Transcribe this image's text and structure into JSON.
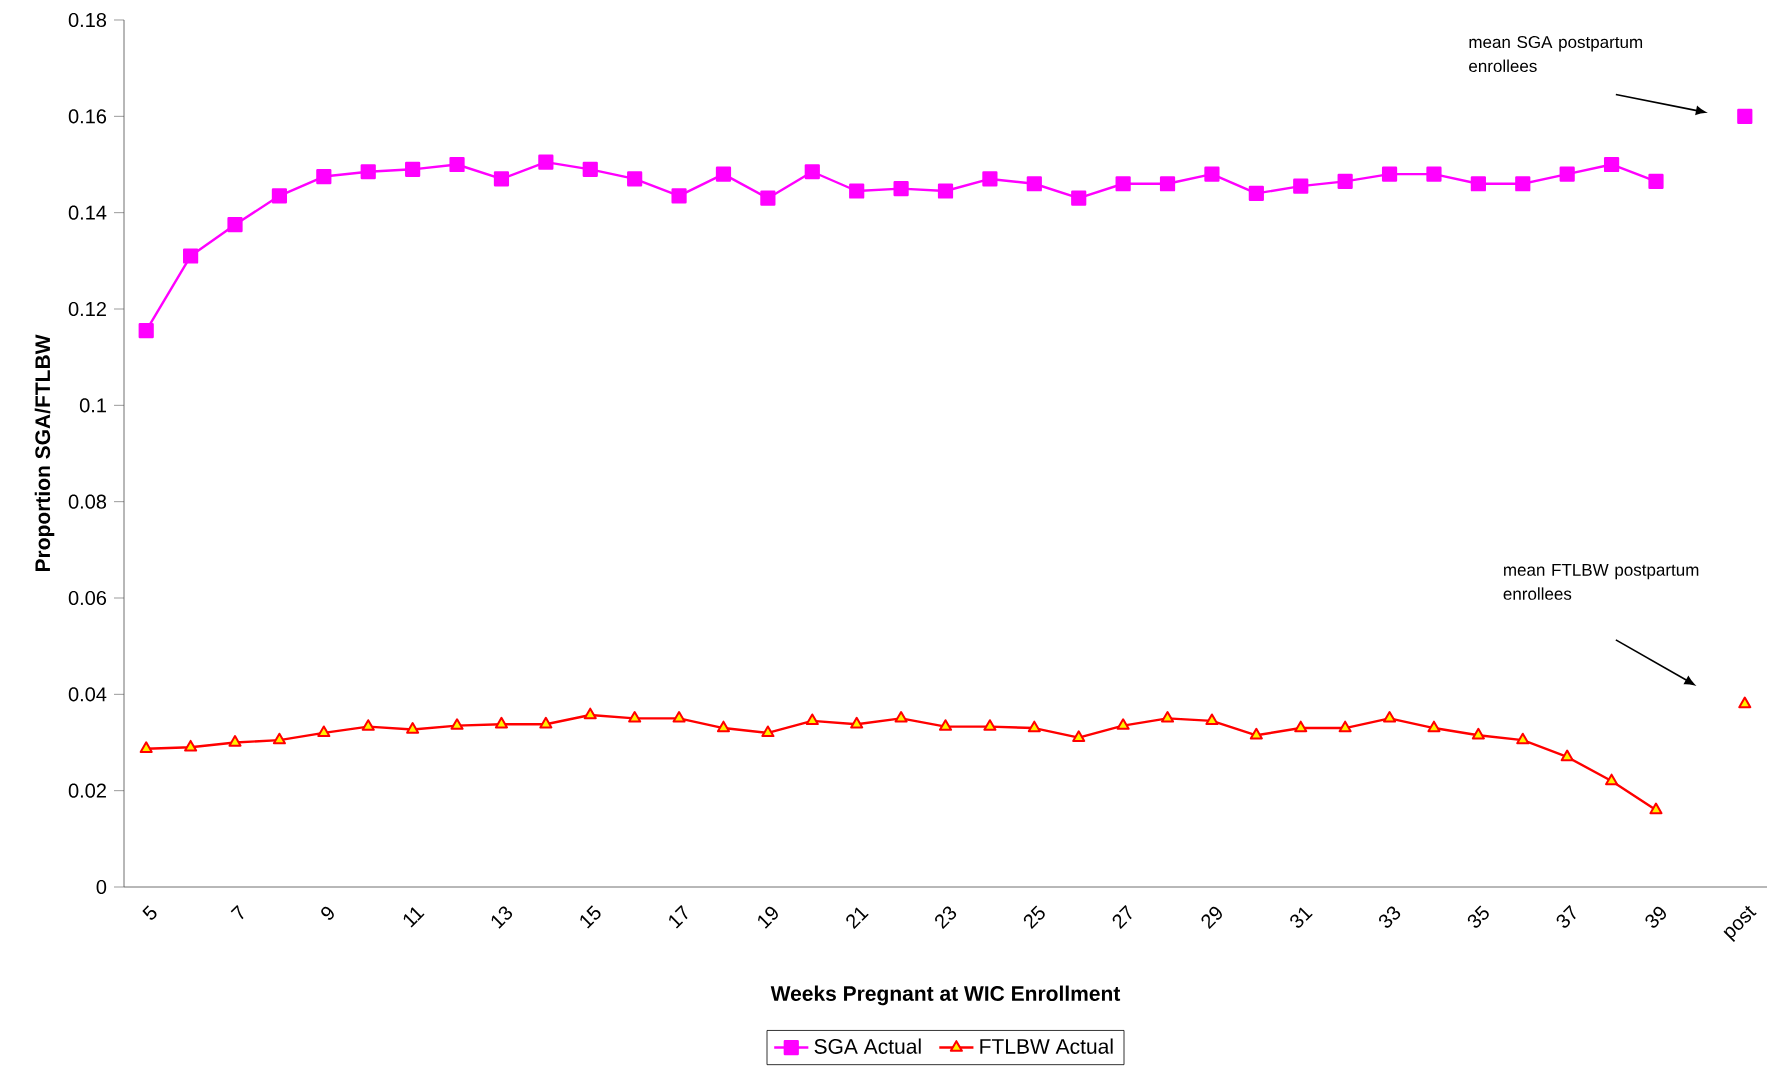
{
  "chart_data": {
    "type": "line",
    "xlabel": "Weeks Pregnant at WIC Enrollment",
    "ylabel": "Proportion SGA/FTLBW",
    "categories": [
      "5",
      null,
      "7",
      null,
      "9",
      null,
      "11",
      null,
      "13",
      null,
      "15",
      null,
      "17",
      null,
      "19",
      null,
      "21",
      null,
      "23",
      null,
      "25",
      null,
      "27",
      null,
      "29",
      null,
      "31",
      null,
      "33",
      null,
      "35",
      null,
      "37",
      null,
      "39",
      null,
      "post"
    ],
    "series": [
      {
        "name": "SGA Actual",
        "color": "#ff00ff",
        "marker": "square",
        "values": [
          0.1155,
          0.131,
          0.1375,
          0.1435,
          0.1475,
          0.1485,
          0.149,
          0.15,
          0.147,
          0.1505,
          0.149,
          0.147,
          0.1435,
          0.148,
          0.143,
          0.1485,
          0.1445,
          0.145,
          0.1445,
          0.147,
          0.146,
          0.143,
          0.146,
          0.146,
          0.148,
          0.144,
          0.1455,
          0.1465,
          0.148,
          0.148,
          0.146,
          0.146,
          0.148,
          0.15,
          0.1465,
          null,
          0.16
        ]
      },
      {
        "name": "FTLBW Actual",
        "color": "#ff0000",
        "marker": "triangle",
        "values": [
          0.0287,
          0.029,
          0.03,
          0.0305,
          0.032,
          0.0333,
          0.0327,
          0.0335,
          0.0338,
          0.0338,
          0.0357,
          0.035,
          0.035,
          0.033,
          0.032,
          0.0345,
          0.0338,
          0.035,
          0.0333,
          0.0333,
          0.033,
          0.031,
          0.0335,
          0.035,
          0.0345,
          0.0315,
          0.033,
          0.033,
          0.035,
          0.033,
          0.0315,
          0.0305,
          0.027,
          0.022,
          0.016,
          null,
          0.038
        ]
      }
    ],
    "ylim": [
      0,
      0.18
    ],
    "yticks": [
      0,
      0.02,
      0.04,
      0.06,
      0.08,
      0.1,
      0.12,
      0.14,
      0.16,
      0.18
    ],
    "grid": false,
    "legend": "bottom",
    "line_style": "solid",
    "annotations": [
      "mean SGA postpartum enrollees",
      "mean FTLBW postpartum enrollees"
    ]
  }
}
